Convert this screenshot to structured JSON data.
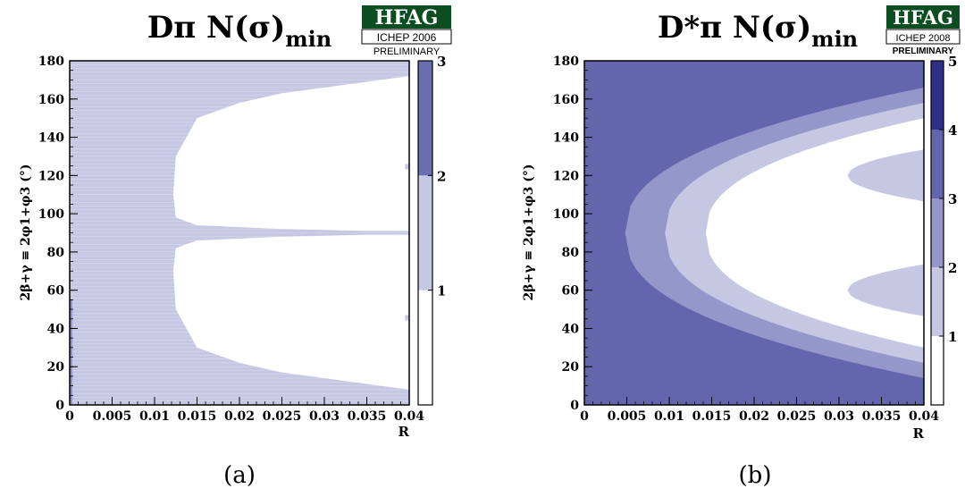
{
  "panels": [
    {
      "title_main": "Dπ N(σ)",
      "title_sub": "min",
      "caption": "(a)",
      "logo": {
        "name": "HFAG",
        "conf": "ICHEP 2006",
        "status": "PRELIMINARY"
      },
      "ylabel": "2β+γ ≡ 2φ1+φ3 (°)",
      "xlabel": "R",
      "xticks": [
        "0",
        "0.005",
        "0.01",
        "0.015",
        "0.02",
        "0.025",
        "0.03",
        "0.035",
        "0.04"
      ],
      "yticks": [
        "0",
        "20",
        "40",
        "60",
        "80",
        "100",
        "120",
        "140",
        "160",
        "180"
      ],
      "zticks": [
        "1",
        "2",
        "3"
      ]
    },
    {
      "title_main": "D*π N(σ)",
      "title_sub": "min",
      "caption": "(b)",
      "logo": {
        "name": "HFAG",
        "conf": "ICHEP 2008",
        "status": "PRELIMINARY"
      },
      "ylabel": "2β+γ ≡ 2φ1+φ3 (°)",
      "xlabel": "R",
      "xticks": [
        "0",
        "0.005",
        "0.01",
        "0.015",
        "0.02",
        "0.025",
        "0.03",
        "0.035",
        "0.04"
      ],
      "yticks": [
        "0",
        "20",
        "40",
        "60",
        "80",
        "100",
        "120",
        "140",
        "160",
        "180"
      ],
      "zticks": [
        "1",
        "2",
        "3",
        "4",
        "5"
      ]
    }
  ],
  "chart_data": [
    {
      "type": "heatmap",
      "title": "Dπ N(σ)min",
      "xlabel": "R",
      "ylabel": "2β+γ ≡ 2φ1+φ3 (°)",
      "xlim": [
        0,
        0.04
      ],
      "ylim": [
        0,
        180
      ],
      "zlim": [
        0,
        3
      ],
      "colorbar_levels": [
        1,
        2,
        3
      ],
      "colors": [
        "#ffffff",
        "#c6c8e3",
        "#6a6db0"
      ],
      "regions": [
        {
          "z_min": 1,
          "z_max": 2,
          "description": "R < 0.0122 (all angles) and thin bands near 0–15°, 85–95°, 165–180°"
        },
        {
          "z_min": 0,
          "z_max": 1,
          "description": "two lobes: R ≥ 0.0122 between ~8–86° and ~94–172°"
        }
      ],
      "boundary": {
        "R": [
          0.0122,
          0.0125,
          0.015,
          0.02,
          0.025,
          0.03,
          0.035,
          0.04
        ],
        "lower_lobe_angle_min": [
          70,
          50,
          30,
          22,
          17,
          14,
          11,
          8
        ],
        "lower_lobe_angle_max": [
          70,
          82,
          86,
          87,
          88,
          88.5,
          89,
          89
        ]
      }
    },
    {
      "type": "heatmap",
      "title": "D*π N(σ)min",
      "xlabel": "R",
      "ylabel": "2β+γ ≡ 2φ1+φ3 (°)",
      "xlim": [
        0,
        0.04
      ],
      "ylim": [
        0,
        180
      ],
      "zlim": [
        0,
        5
      ],
      "colorbar_levels": [
        1,
        2,
        3,
        4,
        5
      ],
      "colors": [
        "#ffffff",
        "#c6c8e3",
        "#9597cb",
        "#6366ad",
        "#2e2f8a"
      ],
      "contours": [
        {
          "level": 3,
          "R_vertex": 0.0048,
          "center_deg": 90,
          "half_width_at_R_max": 76
        },
        {
          "level": 2,
          "R_vertex": 0.0095,
          "center_deg": 90,
          "half_width_at_R_max": 68
        },
        {
          "level": 1,
          "R_vertex": 0.0143,
          "center_deg": 90,
          "half_width_at_R_max": 60
        },
        {
          "level": "island",
          "R_vertex": 0.031,
          "centers_deg": [
            60,
            120
          ],
          "half_height_deg": 15
        }
      ]
    }
  ]
}
